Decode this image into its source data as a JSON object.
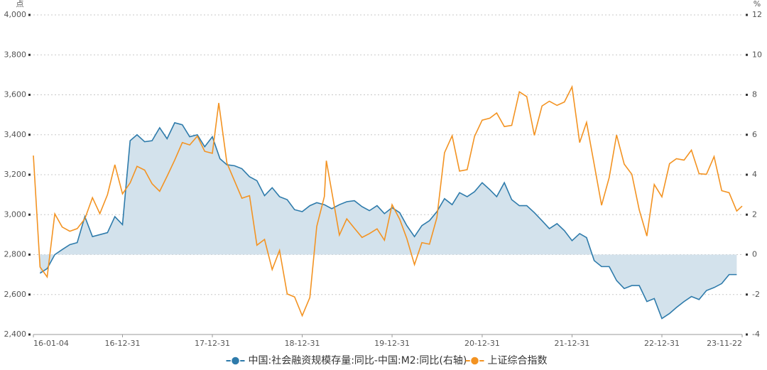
{
  "chart_data": {
    "type": "line",
    "ylabel": "点",
    "y2label": "%",
    "grid": true,
    "legend": "bottom",
    "xlim": [
      "16-01-04",
      "23-11-22"
    ],
    "xticks": [
      "16-01-04",
      "16-12-31",
      "17-12-31",
      "18-12-31",
      "19-12-31",
      "20-12-31",
      "21-12-31",
      "22-12-31",
      "23-11-22"
    ],
    "ylim": [
      2400,
      4000
    ],
    "yticks": [
      {
        "value": 2400,
        "label": "2,400"
      },
      {
        "value": 2600,
        "label": "2,600"
      },
      {
        "value": 2800,
        "label": "2,800"
      },
      {
        "value": 3000,
        "label": "3,000"
      },
      {
        "value": 3200,
        "label": "3,200"
      },
      {
        "value": 3400,
        "label": "3,400"
      },
      {
        "value": 3600,
        "label": "3,600"
      },
      {
        "value": 3800,
        "label": "3,800"
      },
      {
        "value": 4000,
        "label": "4,000"
      }
    ],
    "y2lim": [
      -4,
      12
    ],
    "y2ticks": [
      -4,
      -2,
      0,
      2,
      4,
      6,
      8,
      10,
      12
    ],
    "series": [
      {
        "name": "中国:社会融资规模存量:同比-中国:M2:同比(右轴)",
        "type": "area",
        "axis": "y2",
        "color": "#2e7bab",
        "fill": "#d3e2ec",
        "x": [
          "16-01-31",
          "16-02-29",
          "16-03-31",
          "16-04-30",
          "16-05-31",
          "16-06-30",
          "16-07-31",
          "16-08-31",
          "16-10-31",
          "16-11-30",
          "16-12-31",
          "17-01-31",
          "17-02-28",
          "17-03-31",
          "17-04-30",
          "17-05-31",
          "17-06-30",
          "17-07-31",
          "17-08-31",
          "17-09-30",
          "17-10-31",
          "17-11-30",
          "17-12-31",
          "18-01-31",
          "18-02-28",
          "18-03-31",
          "18-04-30",
          "18-05-31",
          "18-06-30",
          "18-07-31",
          "18-08-31",
          "18-09-30",
          "18-10-31",
          "18-11-30",
          "18-12-31",
          "19-01-31",
          "19-02-28",
          "19-03-31",
          "19-04-30",
          "19-05-31",
          "19-06-30",
          "19-07-31",
          "19-08-31",
          "19-09-30",
          "19-10-31",
          "19-11-30",
          "19-12-31",
          "20-01-31",
          "20-02-29",
          "20-03-31",
          "20-04-30",
          "20-05-31",
          "20-06-30",
          "20-07-31",
          "20-08-31",
          "20-09-30",
          "20-10-31",
          "20-11-30",
          "20-12-31",
          "21-01-31",
          "21-02-28",
          "21-03-31",
          "21-04-30",
          "21-05-31",
          "21-06-30",
          "21-07-31",
          "21-08-31",
          "21-09-30",
          "21-10-31",
          "21-11-30",
          "21-12-31",
          "22-01-31",
          "22-02-28",
          "22-03-31",
          "22-04-30",
          "22-05-31",
          "22-06-30",
          "22-07-31",
          "22-08-31",
          "22-09-30",
          "22-10-31",
          "22-11-30",
          "22-12-31",
          "23-01-31",
          "23-02-28",
          "23-03-31",
          "23-04-30",
          "23-05-31",
          "23-06-30",
          "23-07-31",
          "23-08-31",
          "23-09-30",
          "23-10-31"
        ],
        "values": [
          -0.93,
          -0.7,
          0,
          0.25,
          0.5,
          0.6,
          1.9,
          0.9,
          1.1,
          1.9,
          1.5,
          5.7,
          6.0,
          5.65,
          5.7,
          6.35,
          5.8,
          6.6,
          6.5,
          5.9,
          6.0,
          5.4,
          5.9,
          4.8,
          4.5,
          4.45,
          4.3,
          3.9,
          3.7,
          2.95,
          3.35,
          2.9,
          2.75,
          2.25,
          2.15,
          2.45,
          2.6,
          2.5,
          2.3,
          2.5,
          2.65,
          2.7,
          2.4,
          2.2,
          2.45,
          2.05,
          2.35,
          2.1,
          1.45,
          0.9,
          1.45,
          1.7,
          2.15,
          2.8,
          2.5,
          3.1,
          2.9,
          3.15,
          3.6,
          3.25,
          2.9,
          3.6,
          2.75,
          2.45,
          2.45,
          2.1,
          1.7,
          1.3,
          1.55,
          1.2,
          0.7,
          1.05,
          0.85,
          -0.3,
          -0.6,
          -0.6,
          -1.3,
          -1.7,
          -1.55,
          -1.55,
          -2.35,
          -2.2,
          -3.2,
          -2.95,
          -2.65,
          -2.35,
          -2.1,
          -2.25,
          -1.8,
          -1.65,
          -1.45,
          -1.0,
          -1.0
        ]
      },
      {
        "name": "上证综合指数",
        "type": "line",
        "axis": "y",
        "color": "#f39322",
        "x": [
          "16-01-04",
          "16-01-31",
          "16-02-29",
          "16-03-31",
          "16-04-30",
          "16-05-31",
          "16-06-30",
          "16-07-31",
          "16-08-31",
          "16-09-30",
          "16-10-31",
          "16-11-30",
          "16-12-31",
          "17-01-31",
          "17-02-28",
          "17-03-31",
          "17-04-30",
          "17-05-31",
          "17-06-30",
          "17-07-31",
          "17-08-31",
          "17-09-30",
          "17-10-31",
          "17-11-30",
          "17-12-31",
          "18-01-26",
          "18-02-28",
          "18-03-31",
          "18-04-30",
          "18-05-31",
          "18-06-30",
          "18-07-31",
          "18-08-31",
          "18-09-30",
          "18-10-31",
          "18-11-30",
          "18-12-31",
          "19-01-31",
          "19-02-28",
          "19-03-31",
          "19-04-08",
          "19-05-31",
          "19-06-30",
          "19-07-31",
          "19-08-31",
          "19-09-30",
          "19-10-31",
          "19-11-30",
          "19-12-31",
          "20-01-31",
          "20-02-29",
          "20-03-31",
          "20-04-30",
          "20-05-31",
          "20-06-30",
          "20-07-31",
          "20-08-31",
          "20-09-30",
          "20-10-31",
          "20-11-30",
          "20-12-31",
          "21-01-31",
          "21-02-28",
          "21-03-31",
          "21-04-30",
          "21-05-31",
          "21-06-30",
          "21-07-31",
          "21-08-31",
          "21-09-30",
          "21-10-31",
          "21-11-30",
          "21-12-31",
          "22-01-31",
          "22-02-28",
          "22-03-31",
          "22-04-30",
          "22-05-31",
          "22-06-30",
          "22-07-31",
          "22-08-31",
          "22-09-30",
          "22-10-31",
          "22-11-30",
          "22-12-31",
          "23-01-31",
          "23-02-28",
          "23-03-31",
          "23-04-30",
          "23-05-31",
          "23-06-30",
          "23-07-31",
          "23-08-31",
          "23-09-30",
          "23-10-31",
          "23-11-22"
        ],
        "values": [
          3296,
          2738,
          2688,
          3004,
          2938,
          2917,
          2930,
          2979,
          3085,
          3005,
          3100,
          3250,
          3104,
          3159,
          3242,
          3223,
          3155,
          3117,
          3192,
          3273,
          3361,
          3349,
          3393,
          3317,
          3307,
          3559,
          3259,
          3169,
          3082,
          3095,
          2847,
          2876,
          2725,
          2821,
          2603,
          2588,
          2494,
          2585,
          2941,
          3091,
          3270,
          2898,
          2979,
          2932,
          2886,
          2905,
          2929,
          2872,
          3050,
          2977,
          2880,
          2750,
          2860,
          2852,
          2985,
          3310,
          3395,
          3218,
          3225,
          3392,
          3473,
          3483,
          3509,
          3441,
          3447,
          3615,
          3591,
          3397,
          3544,
          3568,
          3547,
          3564,
          3640,
          3361,
          3462,
          3252,
          3047,
          3186,
          3399,
          3253,
          3202,
          3024,
          2893,
          3151,
          3089,
          3255,
          3280,
          3273,
          3323,
          3205,
          3202,
          3291,
          3120,
          3110,
          3018,
          3043
        ]
      }
    ]
  }
}
